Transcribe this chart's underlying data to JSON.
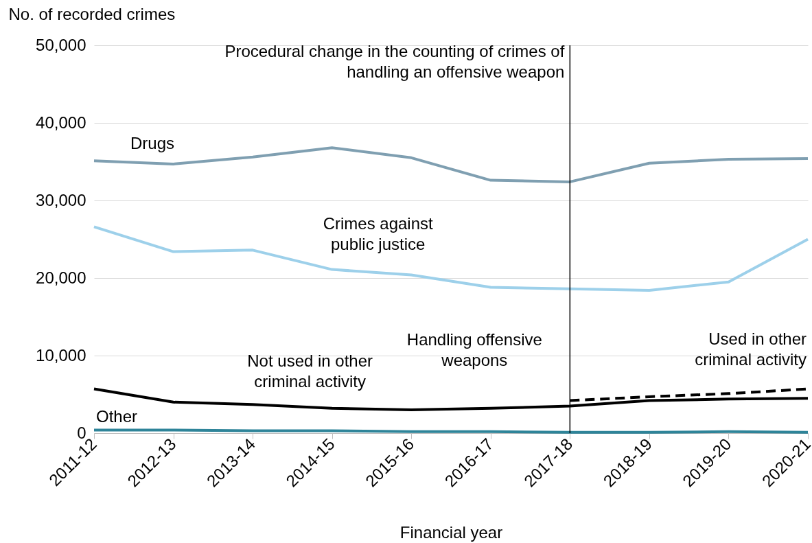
{
  "chart_data": {
    "type": "line",
    "xlabel": "Financial year",
    "ylabel": "No. of recorded crimes",
    "categories": [
      "2011-12",
      "2012-13",
      "2013-14",
      "2014-15",
      "2015-16",
      "2016-17",
      "2017-18",
      "2018-19",
      "2019-20",
      "2020-21"
    ],
    "series": [
      {
        "name": "Drugs",
        "color": "#7f9fb1",
        "line_style": "solid",
        "values": [
          35100,
          34700,
          35600,
          36800,
          35500,
          32600,
          32400,
          34800,
          35300,
          35400
        ]
      },
      {
        "name": "Crimes against\npublic justice",
        "color": "#9dd0ea",
        "line_style": "solid",
        "values": [
          26600,
          23400,
          23600,
          21100,
          20400,
          18800,
          18600,
          18400,
          19500,
          25000
        ]
      },
      {
        "name": "Not used in other\ncriminal activity",
        "color": "#000000",
        "line_style": "solid",
        "values": [
          5700,
          4000,
          3700,
          3200,
          3000,
          3200,
          3500,
          4200,
          4400,
          4500
        ]
      },
      {
        "name": "Used in other\ncriminal activity",
        "color": "#000000",
        "line_style": "dashed",
        "values": [
          null,
          null,
          null,
          null,
          null,
          null,
          4200,
          4700,
          5100,
          5700
        ]
      },
      {
        "name": "Other",
        "color": "#2e8499",
        "line_style": "solid",
        "values": [
          400,
          400,
          300,
          300,
          200,
          200,
          100,
          100,
          200,
          100
        ]
      }
    ],
    "ylim": [
      0,
      50000
    ],
    "yticks": [
      0,
      {
        "value": 10000,
        "label": "10,000"
      },
      {
        "value": 20000,
        "label": "20,000"
      },
      {
        "value": 30000,
        "label": "30,000"
      },
      {
        "value": 40000,
        "label": "40,000"
      },
      {
        "value": 50000,
        "label": "50,000"
      }
    ],
    "grid": "y",
    "legend": false,
    "marker": "none",
    "ref_lines": [
      {
        "axis": "x",
        "value": "2017-18",
        "label": "Procedural change in the counting of crimes of\nhandling an offensive weapon",
        "color": "#000000"
      }
    ],
    "annotations": [
      "Handling offensive\nweapons"
    ]
  }
}
